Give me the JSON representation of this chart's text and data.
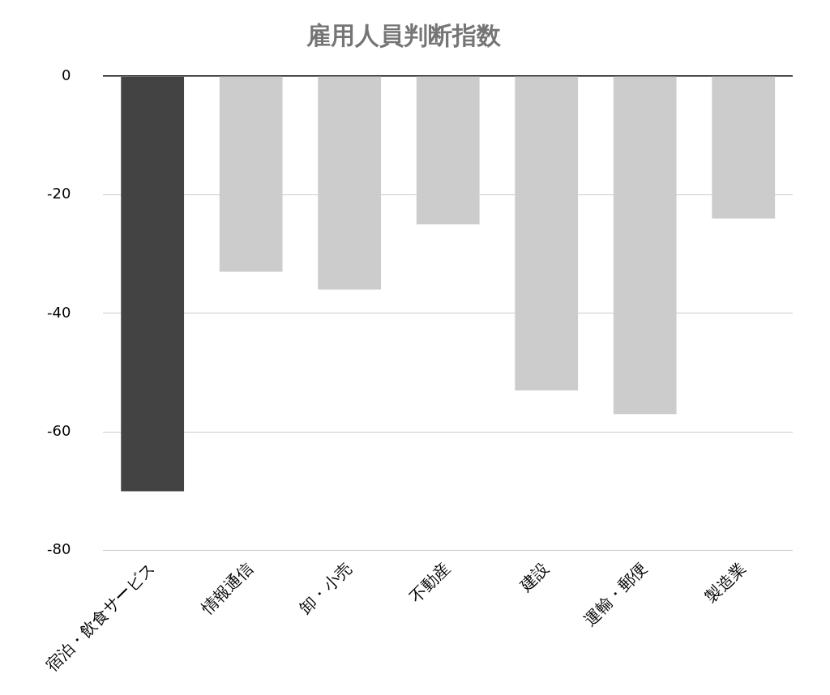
{
  "chart_data": {
    "type": "bar",
    "title": "雇用人員判断指数",
    "categories": [
      "宿泊・飲食サービス",
      "情報通信",
      "卸・小売",
      "不動産",
      "建設",
      "運輸・郵便",
      "製造業"
    ],
    "values": [
      -70,
      -33,
      -36,
      -25,
      -53,
      -57,
      -24
    ],
    "colors": [
      "#434343",
      "#cccccc",
      "#cccccc",
      "#cccccc",
      "#cccccc",
      "#cccccc",
      "#cccccc"
    ],
    "ylim": [
      -80,
      0
    ],
    "yticks": [
      -80,
      -60,
      -40,
      -20,
      0
    ],
    "grid": "y",
    "legend": false
  }
}
